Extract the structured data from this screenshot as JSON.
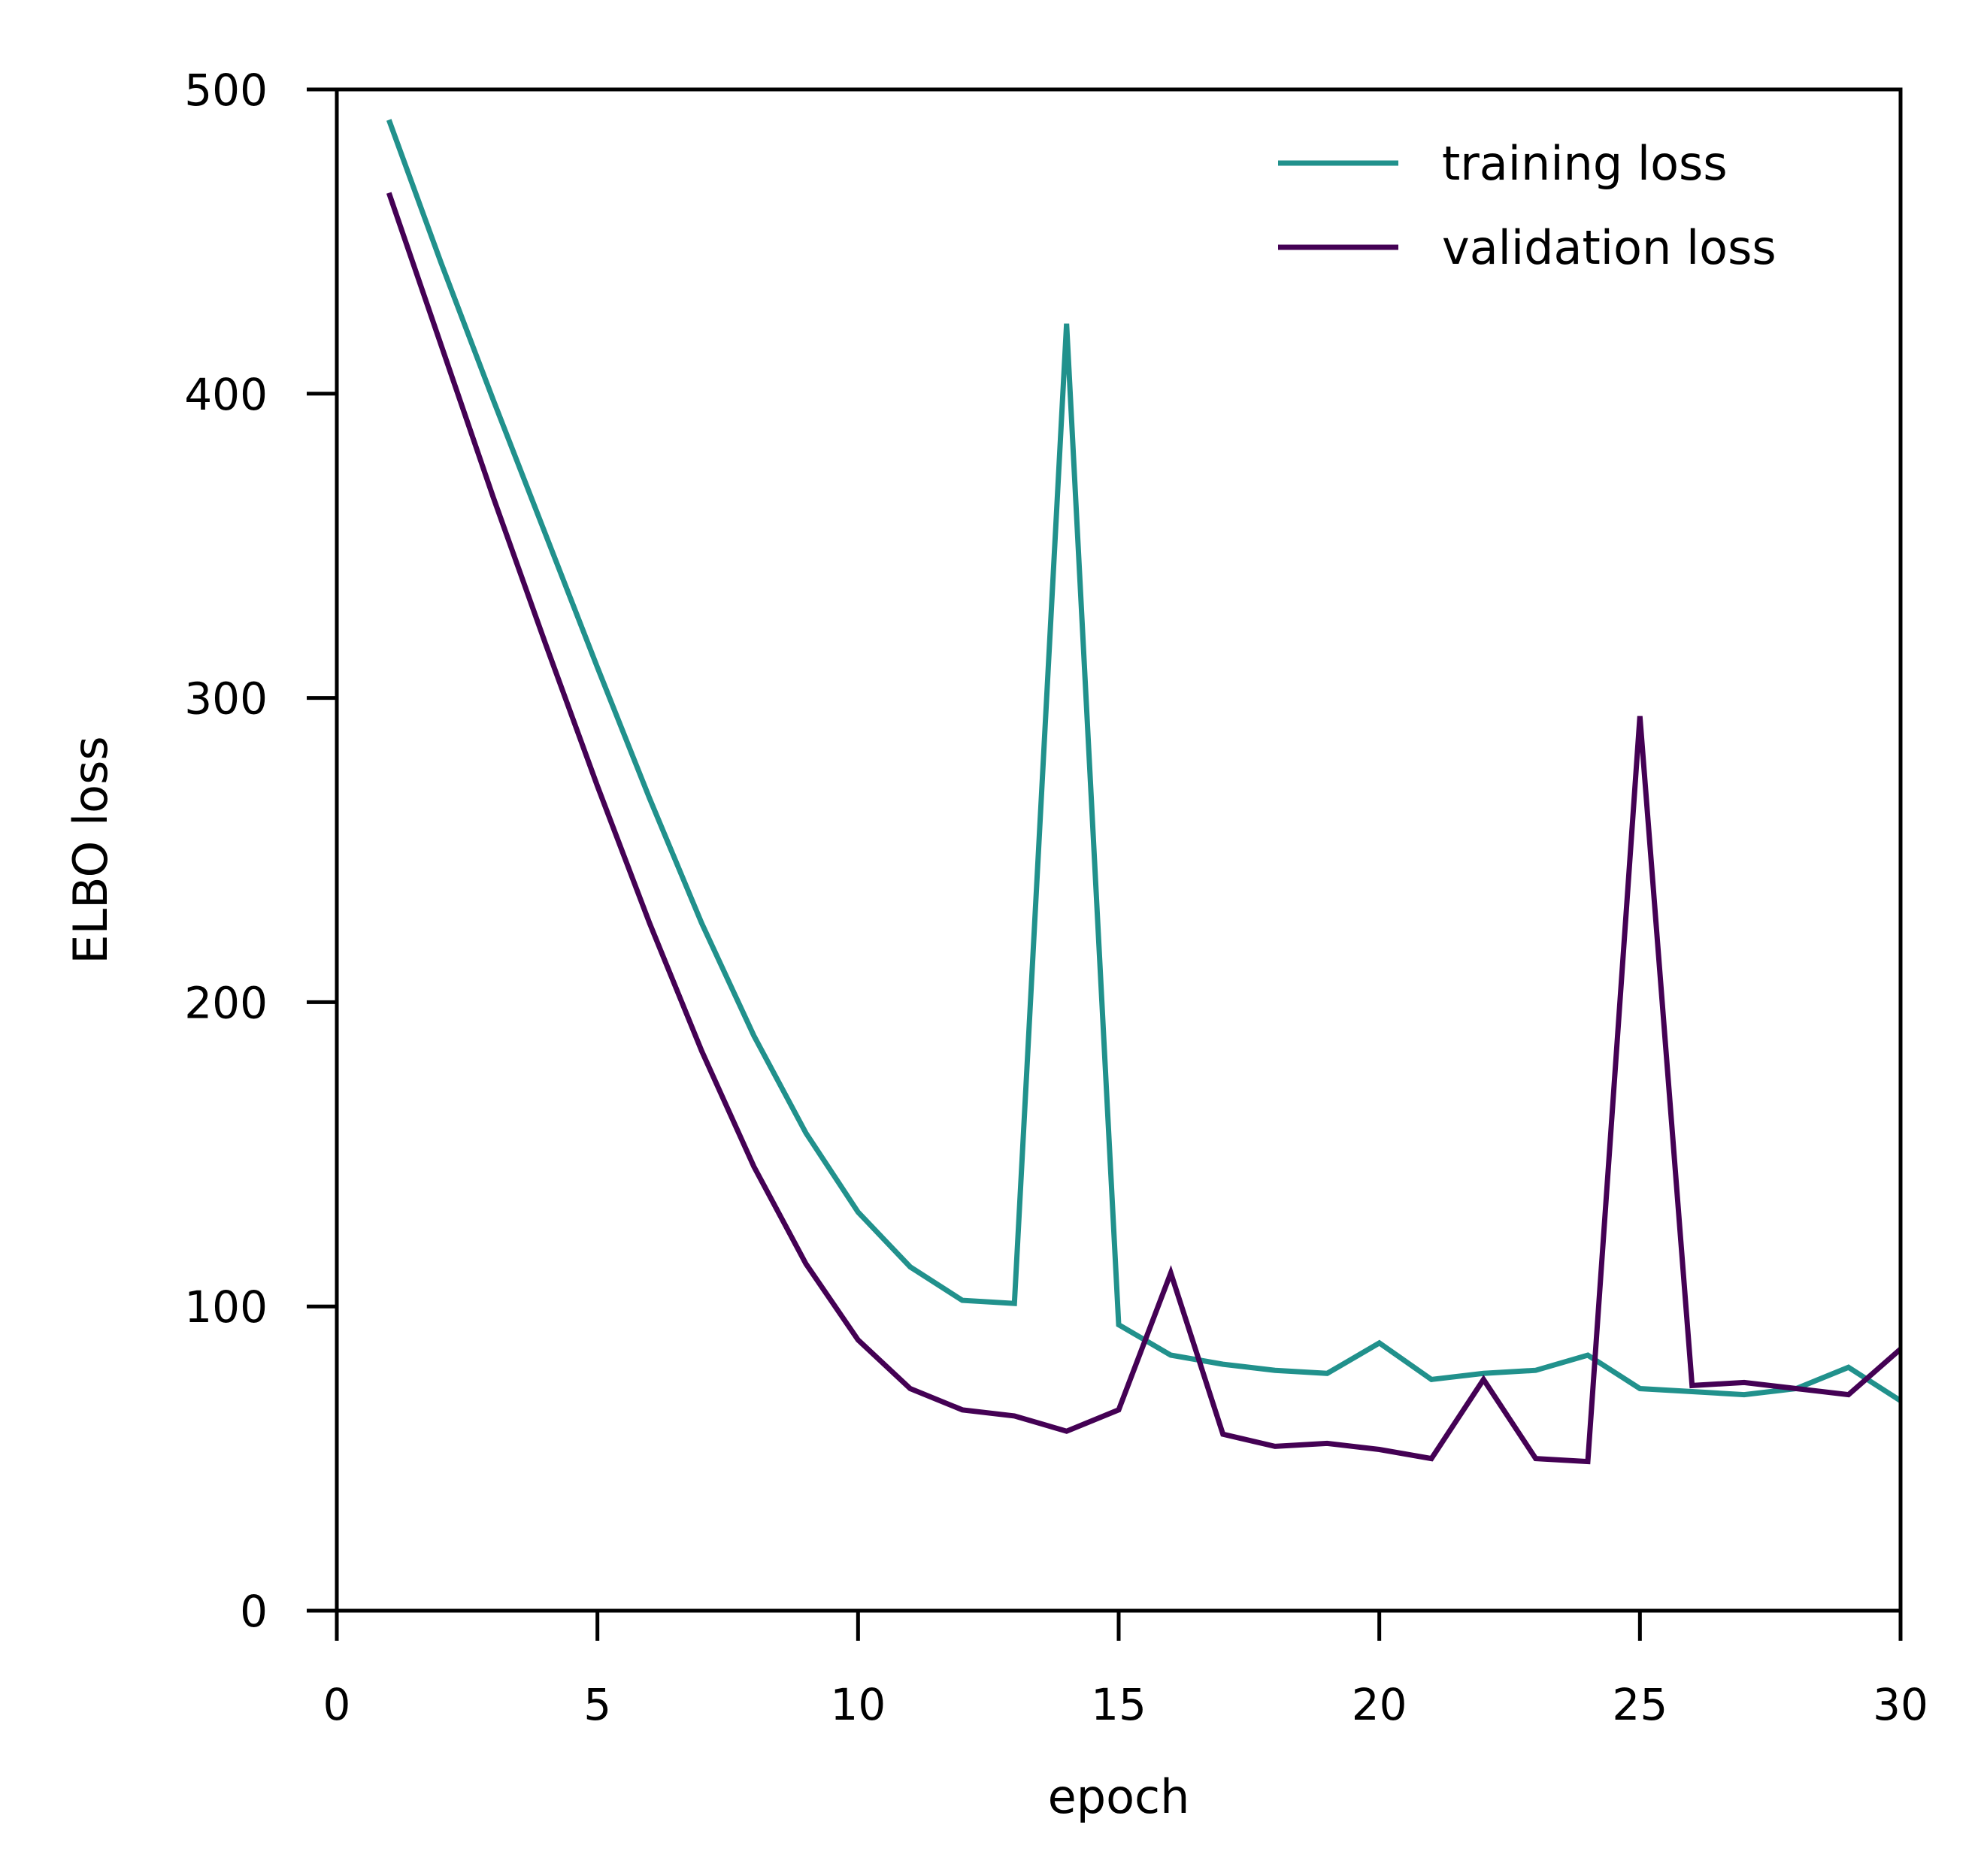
{
  "chart_data": {
    "type": "line",
    "title": "",
    "xlabel": "epoch",
    "ylabel": "ELBO loss",
    "xlim": [
      0,
      30
    ],
    "ylim": [
      0,
      500
    ],
    "xticks": [
      0,
      5,
      10,
      15,
      20,
      25,
      30
    ],
    "yticks": [
      0,
      100,
      200,
      300,
      400,
      500
    ],
    "grid": false,
    "legend_position": "top-right",
    "x": [
      1,
      2,
      3,
      4,
      5,
      6,
      7,
      8,
      9,
      10,
      11,
      12,
      13,
      14,
      15,
      16,
      17,
      18,
      19,
      20,
      21,
      22,
      23,
      24,
      25,
      26,
      27,
      28,
      29,
      30
    ],
    "series": [
      {
        "name": "training loss",
        "color": "#21918c",
        "values": [
          490,
          443,
          398,
          354,
          310,
          267,
          226,
          189,
          157,
          131,
          113,
          102,
          101,
          423,
          94,
          84,
          81,
          79,
          78,
          88,
          76,
          78,
          79,
          84,
          73,
          72,
          71,
          73,
          80,
          69
        ]
      },
      {
        "name": "validation loss",
        "color": "#440154",
        "values": [
          466,
          416,
          366,
          318,
          271,
          226,
          184,
          146,
          114,
          89,
          73,
          66,
          64,
          59,
          66,
          111,
          58,
          54,
          55,
          53,
          50,
          76,
          50,
          49,
          294,
          74,
          75,
          73,
          71,
          86
        ]
      }
    ]
  }
}
